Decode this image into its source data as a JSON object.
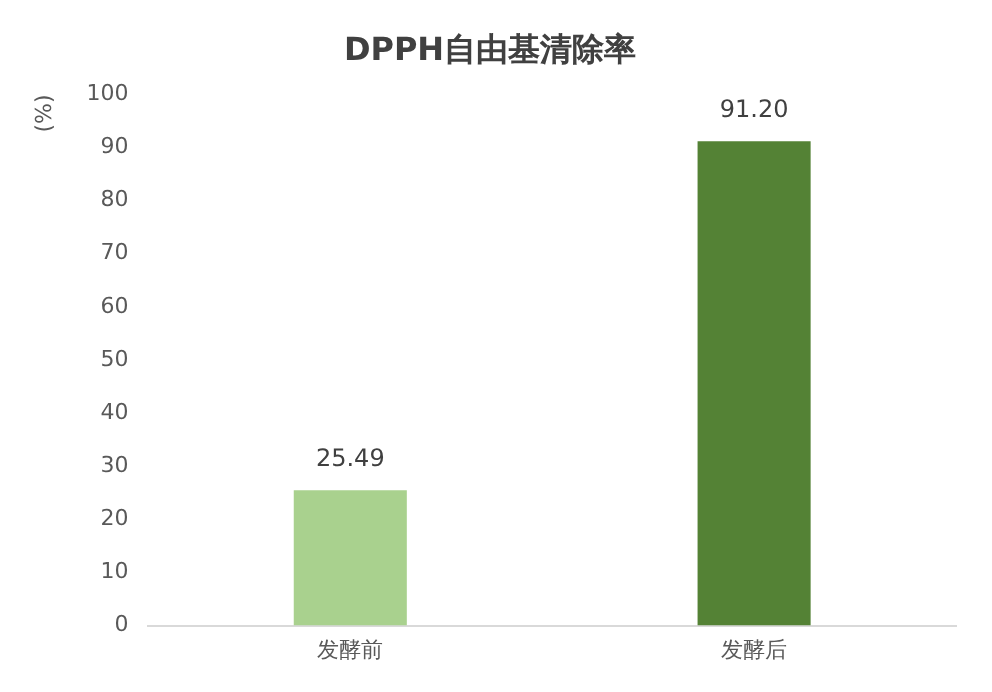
{
  "chart_data": {
    "type": "bar",
    "title": "DPPH自由基清除率",
    "ylabel": "(%)",
    "categories": [
      "发酵前",
      "发酵后"
    ],
    "values": [
      25.49,
      91.2
    ],
    "colors": [
      "#a9d18e",
      "#548235"
    ],
    "value_labels": [
      "25.49",
      "91.20"
    ],
    "ylim": [
      0,
      100
    ],
    "yticks": [
      0,
      10,
      20,
      30,
      40,
      50,
      60,
      70,
      80,
      90,
      100
    ],
    "grid": false,
    "legend": false
  }
}
